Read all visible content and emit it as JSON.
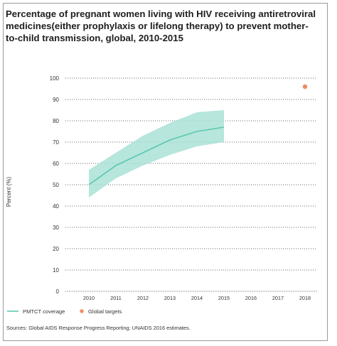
{
  "title": "Percentage of pregnant women living with HIV receiving antiretroviral medicines(either prophylaxis or lifelong therapy) to prevent mother-to-child transmission, global, 2010-2015",
  "source": "Sources: Global AIDS Response Progress Reporting; UNAIDS 2016 estimates.",
  "chart_data": {
    "type": "line",
    "title": "Percentage of pregnant women living with HIV receiving antiretroviral medicines(either prophylaxis or lifelong therapy) to prevent mother-to-child transmission, global, 2010-2015",
    "xlabel": "",
    "ylabel": "Percent (%)",
    "x": [
      2010,
      2011,
      2012,
      2013,
      2014,
      2015,
      2016,
      2017,
      2018
    ],
    "ylim": [
      0,
      100
    ],
    "yticks": [
      0,
      10,
      20,
      30,
      40,
      50,
      60,
      70,
      80,
      90,
      100
    ],
    "grid": "horizontal dotted",
    "legend_position": "bottom-left",
    "series": [
      {
        "name": "PMTCT coverage",
        "type": "line",
        "color": "#5cc7b1",
        "x": [
          2010,
          2011,
          2012,
          2013,
          2014,
          2015
        ],
        "values": [
          50,
          59,
          65,
          71,
          75,
          77
        ],
        "lower": [
          44,
          53,
          59,
          64,
          68,
          70
        ],
        "upper": [
          57,
          65,
          73,
          79,
          84,
          85
        ]
      },
      {
        "name": "Global targets",
        "type": "scatter",
        "color": "#ef8a62",
        "x": [
          2018
        ],
        "values": [
          96
        ]
      }
    ]
  }
}
